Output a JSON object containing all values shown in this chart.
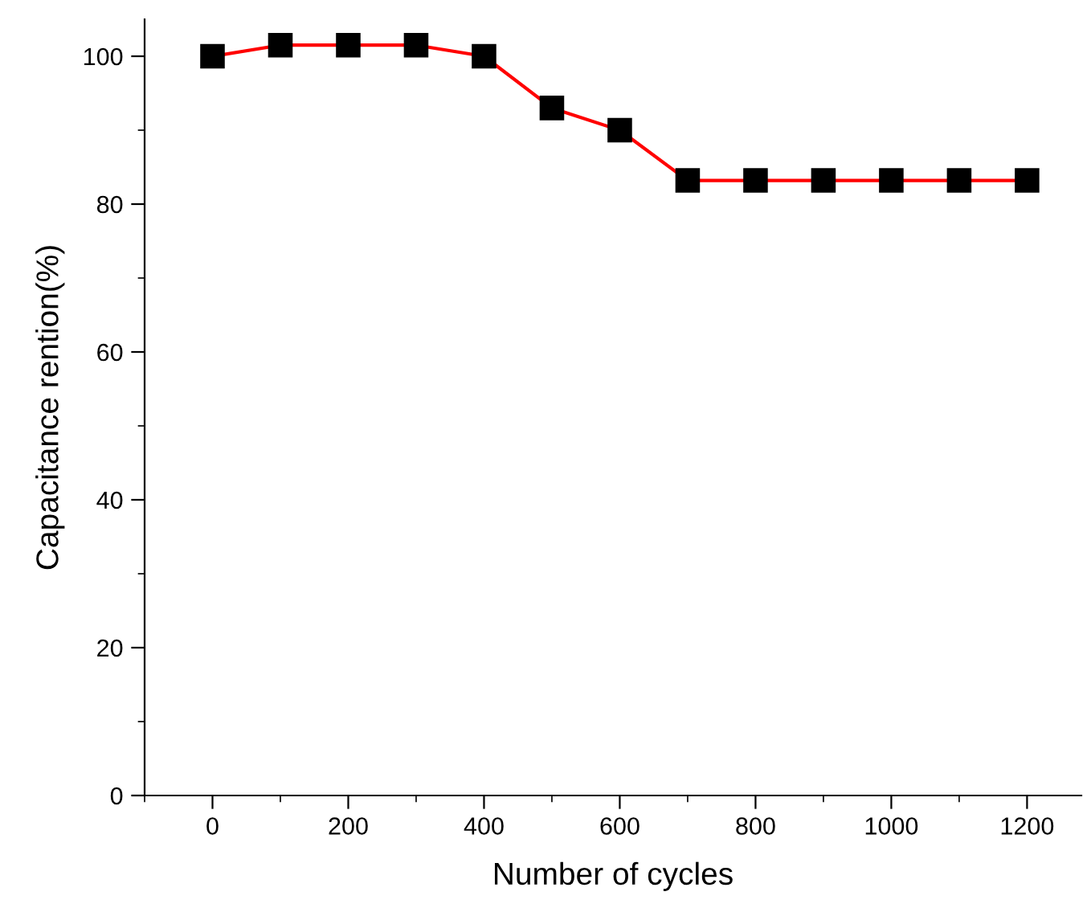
{
  "chart_data": {
    "type": "line",
    "xlabel": "Number of cycles",
    "ylabel": "Capacitance rention(%)",
    "x": [
      0,
      100,
      200,
      300,
      400,
      500,
      600,
      700,
      800,
      900,
      1000,
      1100,
      1200
    ],
    "series": [
      {
        "color": "#ff0000",
        "values": [
          100,
          101.5,
          101.5,
          101.5,
          100,
          93,
          90,
          83.2,
          83.2,
          83.2,
          83.2,
          83.2,
          83.2
        ]
      }
    ],
    "marker": "square",
    "line_style": "solid",
    "xlim": [
      -100,
      1280
    ],
    "ylim": [
      0,
      105
    ],
    "xticks": [
      0,
      200,
      400,
      600,
      800,
      1000,
      1200
    ],
    "yticks": [
      0,
      20,
      40,
      60,
      80,
      100
    ],
    "grid": false,
    "legend": false
  }
}
